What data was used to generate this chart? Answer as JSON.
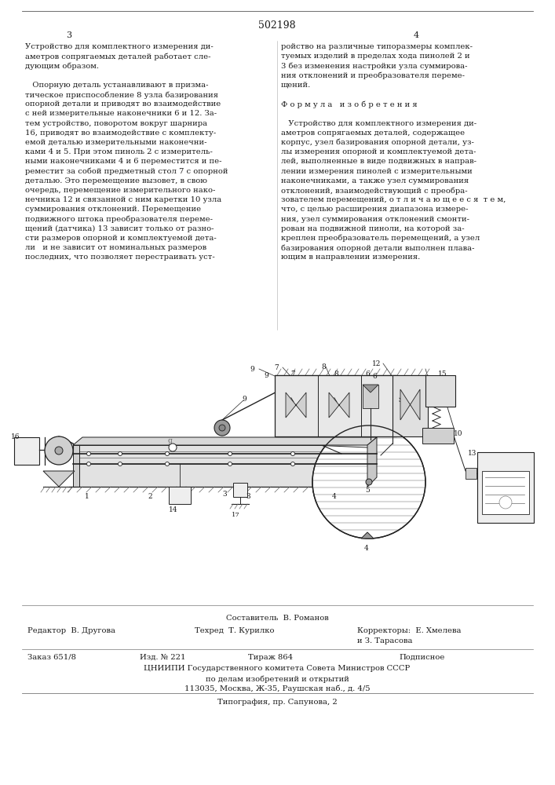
{
  "patent_number": "502198",
  "page_left": "3",
  "page_right": "4",
  "bg_color": "#ffffff",
  "col_left_text": [
    "Устройство для комплектного измерения ди-",
    "аметров сопрягаемых деталей работает сле-",
    "дующим образом.",
    "",
    "   Опорную деталь устанавливают в призма-",
    "тическое приспособление 8 узла базирования",
    "опорной детали и приводят во взаимодействие",
    "с ней измерительные наконечники 6 и 12. За-",
    "тем устройство, поворотом вокруг шарнира",
    "16, приводят во взаимодействие с комплекту-",
    "емой деталью измерительными наконечни-",
    "ками 4 и 5. При этом пиноль 2 с измеритель-",
    "ными наконечниками 4 и 6 переместится и пе-",
    "реместит за собой предметный стол 7 с опорной",
    "деталью. Это перемещение вызовет, в свою",
    "очередь, перемещение измерительного нако-",
    "нечника 12 и связанной с ним каретки 10 узла",
    "суммирования отклонений. Перемещение",
    "подвижного штока преобразователя переме-",
    "щений (датчика) 13 зависит только от разно-",
    "сти размеров опорной и комплектуемой дета-",
    "ли   и не зависит от номинальных размеров",
    "последних, что позволяет перестраивать уст-"
  ],
  "col_right_text": [
    "ройство на различные типоразмеры комплек-",
    "туемых изделий в пределах хода пинолей 2 и",
    "3 без изменения настройки узла суммирова-",
    "ния отклонений и преобразователя переме-",
    "щений.",
    "",
    "Ф о р м у л а   и з о б р е т е н и я",
    "",
    "   Устройство для комплектного измерения ди-",
    "аметров сопрягаемых деталей, содержащее",
    "корпус, узел базирования опорной детали, уз-",
    "лы измерения опорной и комплектуемой дета-",
    "лей, выполненные в виде подвижных в направ-",
    "лении измерения пинолей с измерительными",
    "наконечниками, а также узел суммирования",
    "отклонений, взаимодействующий с преобра-",
    "зователем перемещений, о т л и ч а ю щ е е с я  т е м,",
    "что, с целью расширения диапазона измере-",
    "ния, узел суммирования отклонений смонти-",
    "рован на подвижной пиноли, на которой за-",
    "креплен преобразователь перемещений, а узел",
    "базирования опорной детали выполнен плава-",
    "ющим в направлении измерения."
  ],
  "sestavitel_line": "Составитель  В. Романов",
  "editor_line": "Редактор  В. Другова",
  "tech_line": "Техред  Т. Курилко",
  "correctors_line": "Корректоры:  Е. Хмелева",
  "correctors_line2": "и З. Тарасова",
  "order_line": "Заказ 651/8",
  "edition_line": "Изд. № 221",
  "circulation_line": "Тираж 864",
  "subscription_line": "Подписное",
  "org_line1": "ЦНИИПИ Государственного комитета Совета Министров СССР",
  "org_line2": "по делам изобретений и открытий",
  "org_line3": "113035, Москва, Ж-35, Раушская наб., д. 4/5",
  "print_line": "Типография, пр. Сапунова, 2"
}
